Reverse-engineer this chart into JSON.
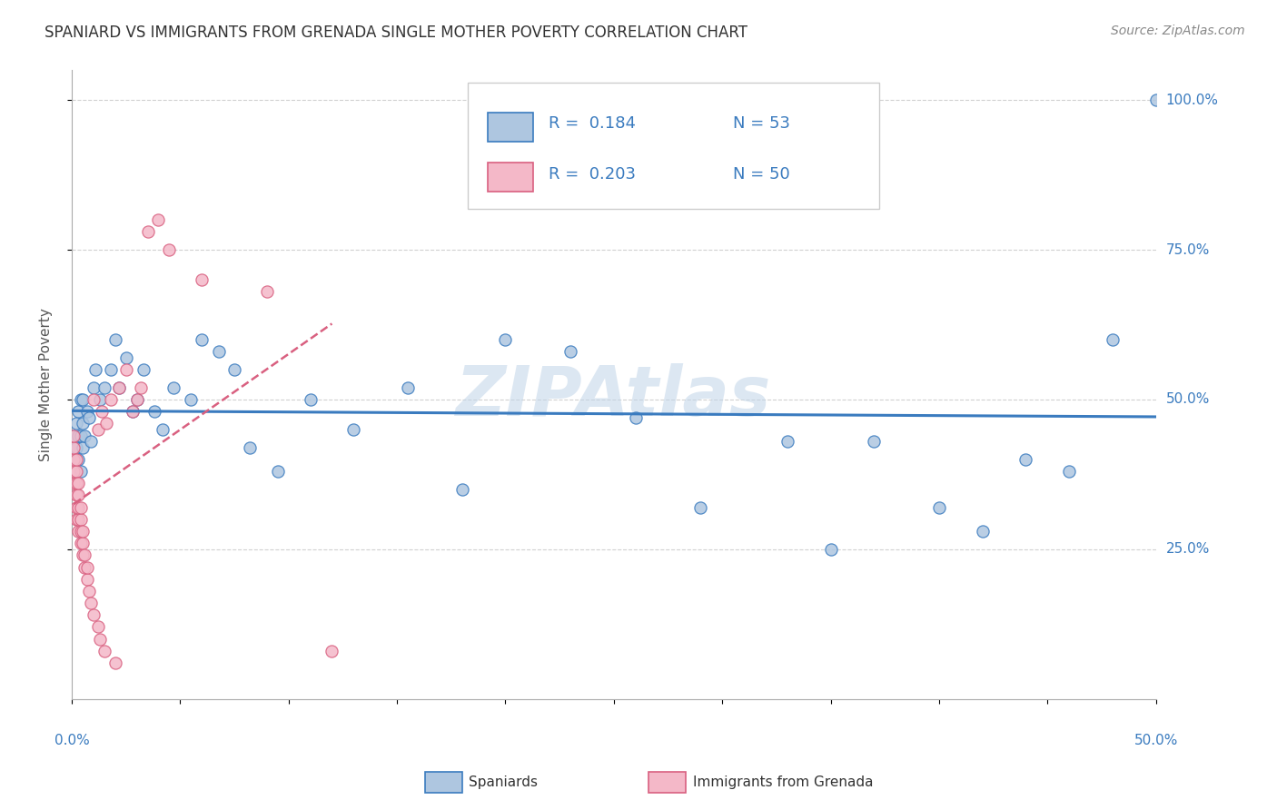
{
  "title": "SPANIARD VS IMMIGRANTS FROM GRENADA SINGLE MOTHER POVERTY CORRELATION CHART",
  "source": "Source: ZipAtlas.com",
  "ylabel": "Single Mother Poverty",
  "ytick_labels": [
    "100.0%",
    "75.0%",
    "50.0%",
    "25.0%"
  ],
  "ytick_values": [
    1.0,
    0.75,
    0.5,
    0.25
  ],
  "xmin": 0.0,
  "xmax": 0.5,
  "ymin": 0.0,
  "ymax": 1.05,
  "legend_r1": "R =  0.184",
  "legend_n1": "N = 53",
  "legend_r2": "R =  0.203",
  "legend_n2": "N = 50",
  "spaniard_color": "#aec6e0",
  "grenada_color": "#f4b8c8",
  "trend_spaniard_color": "#3a7bbf",
  "trend_grenada_color": "#d96080",
  "watermark": "ZIPAtlas",
  "watermark_color": "#c0d4e8",
  "spaniard_x": [
    0.001,
    0.002,
    0.002,
    0.003,
    0.003,
    0.003,
    0.004,
    0.004,
    0.004,
    0.005,
    0.005,
    0.005,
    0.006,
    0.007,
    0.008,
    0.009,
    0.01,
    0.011,
    0.013,
    0.015,
    0.018,
    0.02,
    0.022,
    0.025,
    0.028,
    0.03,
    0.033,
    0.038,
    0.042,
    0.047,
    0.055,
    0.06,
    0.068,
    0.075,
    0.082,
    0.095,
    0.11,
    0.13,
    0.155,
    0.18,
    0.2,
    0.23,
    0.26,
    0.29,
    0.33,
    0.37,
    0.4,
    0.42,
    0.44,
    0.46,
    0.35,
    0.48,
    0.5
  ],
  "spaniard_y": [
    0.44,
    0.42,
    0.46,
    0.4,
    0.44,
    0.48,
    0.38,
    0.44,
    0.5,
    0.42,
    0.46,
    0.5,
    0.44,
    0.48,
    0.47,
    0.43,
    0.52,
    0.55,
    0.5,
    0.52,
    0.55,
    0.6,
    0.52,
    0.57,
    0.48,
    0.5,
    0.55,
    0.48,
    0.45,
    0.52,
    0.5,
    0.6,
    0.58,
    0.55,
    0.42,
    0.38,
    0.5,
    0.45,
    0.52,
    0.35,
    0.6,
    0.58,
    0.47,
    0.32,
    0.43,
    0.43,
    0.32,
    0.28,
    0.4,
    0.38,
    0.25,
    0.6,
    1.0
  ],
  "grenada_x": [
    0.001,
    0.001,
    0.001,
    0.001,
    0.001,
    0.002,
    0.002,
    0.002,
    0.002,
    0.002,
    0.002,
    0.003,
    0.003,
    0.003,
    0.003,
    0.003,
    0.004,
    0.004,
    0.004,
    0.004,
    0.005,
    0.005,
    0.005,
    0.006,
    0.006,
    0.007,
    0.007,
    0.008,
    0.009,
    0.01,
    0.01,
    0.012,
    0.012,
    0.013,
    0.014,
    0.015,
    0.016,
    0.018,
    0.02,
    0.022,
    0.025,
    0.028,
    0.03,
    0.032,
    0.035,
    0.04,
    0.045,
    0.06,
    0.09,
    0.12
  ],
  "grenada_y": [
    0.36,
    0.38,
    0.4,
    0.42,
    0.44,
    0.3,
    0.32,
    0.34,
    0.36,
    0.38,
    0.4,
    0.28,
    0.3,
    0.32,
    0.34,
    0.36,
    0.26,
    0.28,
    0.3,
    0.32,
    0.24,
    0.26,
    0.28,
    0.22,
    0.24,
    0.2,
    0.22,
    0.18,
    0.16,
    0.14,
    0.5,
    0.12,
    0.45,
    0.1,
    0.48,
    0.08,
    0.46,
    0.5,
    0.06,
    0.52,
    0.55,
    0.48,
    0.5,
    0.52,
    0.78,
    0.8,
    0.75,
    0.7,
    0.68,
    0.08
  ]
}
